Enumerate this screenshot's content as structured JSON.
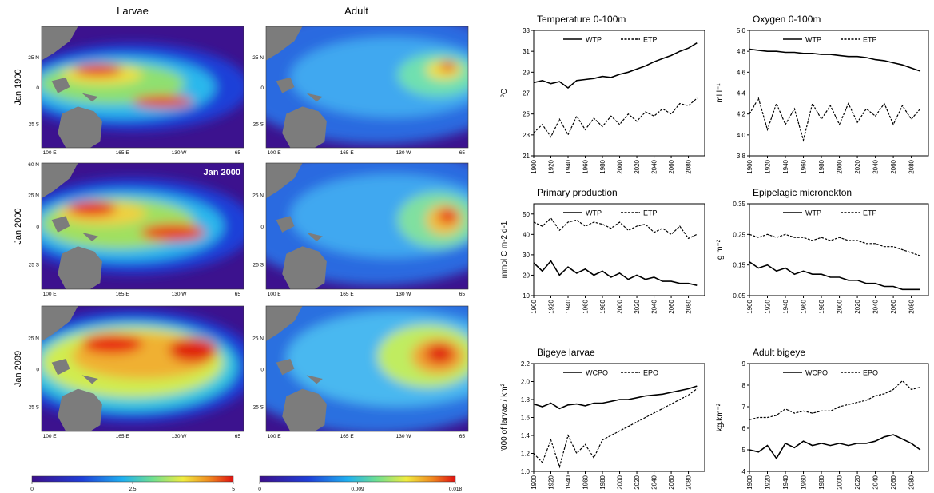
{
  "maps": {
    "columns": [
      "Larvae",
      "Adult"
    ],
    "rows": [
      "Jan 1900",
      "Jan 2000",
      "Jan 2099"
    ],
    "lat_labels": [
      "25 N",
      "0",
      "25 S"
    ],
    "top_lat_label": "60 N",
    "lon_labels": [
      "100 E",
      "165 E",
      "130 W",
      "65"
    ],
    "annotation": "Jan 2000",
    "colorbars": [
      {
        "lim": [
          0,
          5
        ],
        "ticks": [
          0,
          2.5,
          5
        ]
      },
      {
        "lim": [
          0,
          0.018
        ],
        "ticks": [
          0,
          0.009,
          0.018
        ]
      }
    ]
  },
  "chart_data": [
    {
      "type": "line",
      "title": "Temperature 0-100m",
      "y_label": "ºC",
      "legend": "upper center",
      "x": [
        1900,
        1910,
        1920,
        1930,
        1940,
        1950,
        1960,
        1970,
        1980,
        1990,
        2000,
        2010,
        2020,
        2030,
        2040,
        2050,
        2060,
        2070,
        2080,
        2090
      ],
      "xlim": [
        1900,
        2099
      ],
      "xticks": [
        1900,
        1920,
        1940,
        1960,
        1980,
        2000,
        2020,
        2040,
        2060,
        2080
      ],
      "ylim": [
        21,
        33
      ],
      "yticks": [
        21,
        23,
        25,
        27,
        29,
        31,
        33
      ],
      "series": [
        {
          "name": "WTP",
          "color": "#000000",
          "style": "solid",
          "values": [
            28.0,
            28.2,
            27.9,
            28.1,
            27.5,
            28.2,
            28.3,
            28.4,
            28.6,
            28.5,
            28.8,
            29.0,
            29.3,
            29.6,
            30.0,
            30.3,
            30.6,
            31.0,
            31.3,
            31.8
          ]
        },
        {
          "name": "ETP",
          "color": "#000000",
          "style": "dashed",
          "values": [
            23.2,
            24.0,
            22.8,
            24.5,
            23.0,
            24.8,
            23.5,
            24.6,
            23.8,
            24.8,
            24.0,
            25.0,
            24.3,
            25.2,
            24.8,
            25.5,
            25.0,
            26.0,
            25.8,
            26.5
          ]
        }
      ]
    },
    {
      "type": "line",
      "title": "Oxygen 0-100m",
      "y_label": "ml l⁻¹",
      "legend": "upper center",
      "x": [
        1900,
        1910,
        1920,
        1930,
        1940,
        1950,
        1960,
        1970,
        1980,
        1990,
        2000,
        2010,
        2020,
        2030,
        2040,
        2050,
        2060,
        2070,
        2080,
        2090
      ],
      "xlim": [
        1900,
        2099
      ],
      "xticks": [
        1900,
        1920,
        1940,
        1960,
        1980,
        2000,
        2020,
        2040,
        2060,
        2080
      ],
      "ylim": [
        3.8,
        5.0
      ],
      "yticks": [
        3.8,
        {
          "value": 4.0,
          "label": "4.0"
        },
        4.2,
        4.4,
        4.6,
        4.8,
        {
          "value": 5.0,
          "label": "5.0"
        }
      ],
      "series": [
        {
          "name": "WTP",
          "color": "#000000",
          "style": "solid",
          "values": [
            4.82,
            4.81,
            4.8,
            4.8,
            4.79,
            4.79,
            4.78,
            4.78,
            4.77,
            4.77,
            4.76,
            4.75,
            4.75,
            4.74,
            4.72,
            4.71,
            4.69,
            4.67,
            4.64,
            4.61
          ]
        },
        {
          "name": "ETP",
          "color": "#000000",
          "style": "dashed",
          "values": [
            4.2,
            4.35,
            4.05,
            4.3,
            4.1,
            4.25,
            3.95,
            4.3,
            4.15,
            4.28,
            4.1,
            4.3,
            4.12,
            4.25,
            4.18,
            4.3,
            4.1,
            4.28,
            4.15,
            4.25
          ]
        }
      ]
    },
    {
      "type": "line",
      "title": "Primary production",
      "y_label": "mmol C m-2 d-1",
      "legend": "upper center",
      "x": [
        1900,
        1910,
        1920,
        1930,
        1940,
        1950,
        1960,
        1970,
        1980,
        1990,
        2000,
        2010,
        2020,
        2030,
        2040,
        2050,
        2060,
        2070,
        2080,
        2090
      ],
      "xlim": [
        1900,
        2099
      ],
      "xticks": [
        1900,
        1920,
        1940,
        1960,
        1980,
        2000,
        2020,
        2040,
        2060,
        2080
      ],
      "ylim": [
        10,
        55
      ],
      "yticks": [
        10,
        20,
        30,
        40,
        50
      ],
      "series": [
        {
          "name": "WTP",
          "color": "#000000",
          "style": "solid",
          "values": [
            26,
            22,
            27,
            20,
            24,
            21,
            23,
            20,
            22,
            19,
            21,
            18,
            20,
            18,
            19,
            17,
            17,
            16,
            16,
            15
          ]
        },
        {
          "name": "ETP",
          "color": "#000000",
          "style": "dashed",
          "values": [
            46,
            44,
            48,
            42,
            46,
            47,
            44,
            46,
            45,
            43,
            46,
            42,
            44,
            45,
            41,
            43,
            40,
            44,
            38,
            40
          ]
        }
      ]
    },
    {
      "type": "line",
      "title": "Epipelagic micronekton",
      "y_label": "g m⁻²",
      "legend": "upper center",
      "x": [
        1900,
        1910,
        1920,
        1930,
        1940,
        1950,
        1960,
        1970,
        1980,
        1990,
        2000,
        2010,
        2020,
        2030,
        2040,
        2050,
        2060,
        2070,
        2080,
        2090
      ],
      "xlim": [
        1900,
        2099
      ],
      "xticks": [
        1900,
        1920,
        1940,
        1960,
        1980,
        2000,
        2020,
        2040,
        2060,
        2080
      ],
      "ylim": [
        0.05,
        0.35
      ],
      "yticks": [
        0.05,
        0.15,
        0.25,
        0.35
      ],
      "series": [
        {
          "name": "WTP",
          "color": "#000000",
          "style": "solid",
          "values": [
            0.16,
            0.14,
            0.15,
            0.13,
            0.14,
            0.12,
            0.13,
            0.12,
            0.12,
            0.11,
            0.11,
            0.1,
            0.1,
            0.09,
            0.09,
            0.08,
            0.08,
            0.07,
            0.07,
            0.07
          ]
        },
        {
          "name": "ETP",
          "color": "#000000",
          "style": "dashed",
          "values": [
            0.25,
            0.24,
            0.25,
            0.24,
            0.25,
            0.24,
            0.24,
            0.23,
            0.24,
            0.23,
            0.24,
            0.23,
            0.23,
            0.22,
            0.22,
            0.21,
            0.21,
            0.2,
            0.19,
            0.18
          ]
        }
      ]
    },
    {
      "type": "line",
      "title": "Bigeye larvae",
      "y_label": "'000 of larvae / km²",
      "legend": "upper center",
      "x": [
        1900,
        1910,
        1920,
        1930,
        1940,
        1950,
        1960,
        1970,
        1980,
        1990,
        2000,
        2010,
        2020,
        2030,
        2040,
        2050,
        2060,
        2070,
        2080,
        2090
      ],
      "xlim": [
        1900,
        2099
      ],
      "xticks": [
        1900,
        1920,
        1940,
        1960,
        1980,
        2000,
        2020,
        2040,
        2060,
        2080
      ],
      "ylim": [
        1.0,
        2.2
      ],
      "yticks": [
        {
          "value": 1.0,
          "label": "1.0"
        },
        1.2,
        1.4,
        1.6,
        1.8,
        {
          "value": 2.0,
          "label": "2.0"
        },
        2.2
      ],
      "series": [
        {
          "name": "WCPO",
          "color": "#000000",
          "style": "solid",
          "values": [
            1.75,
            1.72,
            1.76,
            1.7,
            1.74,
            1.75,
            1.73,
            1.76,
            1.76,
            1.78,
            1.8,
            1.8,
            1.82,
            1.84,
            1.85,
            1.86,
            1.88,
            1.9,
            1.92,
            1.95
          ]
        },
        {
          "name": "EPO",
          "color": "#000000",
          "style": "dashed",
          "values": [
            1.2,
            1.1,
            1.35,
            1.05,
            1.4,
            1.2,
            1.3,
            1.15,
            1.35,
            1.4,
            1.45,
            1.5,
            1.55,
            1.6,
            1.65,
            1.7,
            1.75,
            1.8,
            1.85,
            1.92
          ]
        }
      ]
    },
    {
      "type": "line",
      "title": "Adult bigeye",
      "y_label": "kg.km⁻²",
      "legend": "upper center",
      "x": [
        1900,
        1910,
        1920,
        1930,
        1940,
        1950,
        1960,
        1970,
        1980,
        1990,
        2000,
        2010,
        2020,
        2030,
        2040,
        2050,
        2060,
        2070,
        2080,
        2090
      ],
      "xlim": [
        1900,
        2099
      ],
      "xticks": [
        1900,
        1920,
        1940,
        1960,
        1980,
        2000,
        2020,
        2040,
        2060,
        2080
      ],
      "ylim": [
        4,
        9
      ],
      "yticks": [
        4,
        5,
        6,
        7,
        8,
        9
      ],
      "series": [
        {
          "name": "WCPO",
          "color": "#000000",
          "style": "solid",
          "values": [
            5.0,
            4.9,
            5.2,
            4.6,
            5.3,
            5.1,
            5.4,
            5.2,
            5.3,
            5.2,
            5.3,
            5.2,
            5.3,
            5.3,
            5.4,
            5.6,
            5.7,
            5.5,
            5.3,
            5.0
          ]
        },
        {
          "name": "EPO",
          "color": "#000000",
          "style": "dashed",
          "values": [
            6.4,
            6.5,
            6.5,
            6.6,
            6.9,
            6.7,
            6.8,
            6.7,
            6.8,
            6.8,
            7.0,
            7.1,
            7.2,
            7.3,
            7.5,
            7.6,
            7.8,
            8.2,
            7.8,
            7.9
          ]
        }
      ]
    }
  ]
}
